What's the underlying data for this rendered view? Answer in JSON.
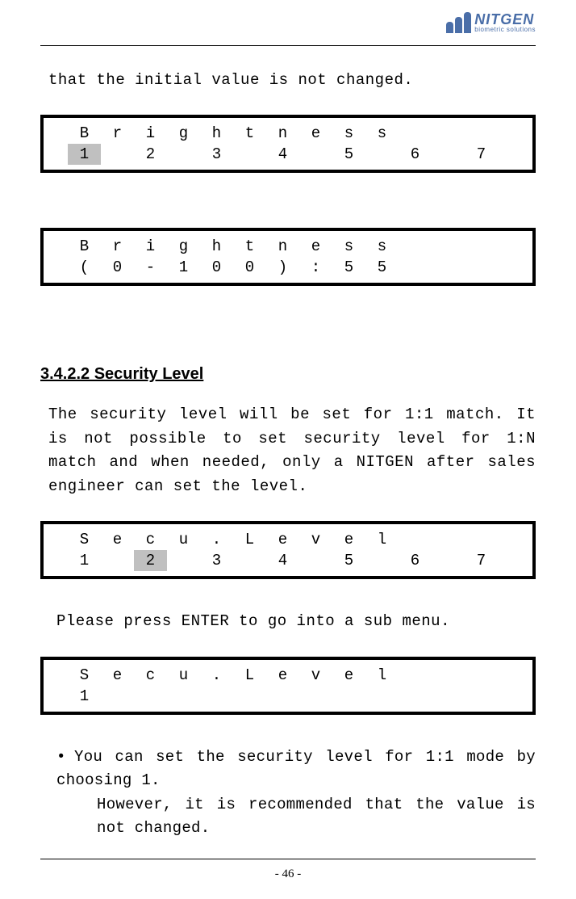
{
  "logo": {
    "main": "NITGEN",
    "sub": "biometric solutions"
  },
  "intro_line": "that the initial value is not changed.",
  "lcd1": {
    "row1": [
      "B",
      "r",
      "i",
      "g",
      "h",
      "t",
      "n",
      "e",
      "s",
      "s",
      "",
      "",
      "",
      ""
    ],
    "row2": [
      "1",
      "",
      "2",
      "",
      "3",
      "",
      "4",
      "",
      "5",
      "",
      "6",
      "",
      "7",
      ""
    ],
    "highlight_row": 1,
    "highlight_col": 0
  },
  "lcd2": {
    "row1": [
      "B",
      "r",
      "i",
      "g",
      "h",
      "t",
      "n",
      "e",
      "s",
      "s",
      "",
      "",
      "",
      ""
    ],
    "row2": [
      "(",
      "0",
      "-",
      "1",
      "0",
      "0",
      ")",
      ":",
      "5",
      "5",
      "",
      "",
      "",
      ""
    ],
    "highlight_row": -1,
    "highlight_col": -1
  },
  "section_heading": "3.4.2.2 Security Level",
  "section_body": "The security level will be set for 1:1 match. It is not possible to set security level for 1:N match and when needed, only a NITGEN after sales engineer can set the level.",
  "lcd3": {
    "row1": [
      "S",
      "e",
      "c",
      "u",
      ".",
      "L",
      "e",
      "v",
      "e",
      "l",
      "",
      "",
      "",
      ""
    ],
    "row2": [
      "1",
      "",
      "2",
      "",
      "3",
      "",
      "4",
      "",
      "5",
      "",
      "6",
      "",
      "7",
      ""
    ],
    "highlight_row": 1,
    "highlight_col": 2
  },
  "enter_line": "Please press ENTER to go into a sub menu.",
  "lcd4": {
    "row1": [
      "S",
      "e",
      "c",
      "u",
      ".",
      "L",
      "e",
      "v",
      "e",
      "l",
      "",
      "",
      "",
      ""
    ],
    "row2": [
      "1",
      "",
      "",
      "",
      "",
      "",
      "",
      "",
      "",
      "",
      "",
      "",
      "",
      ""
    ],
    "highlight_row": -1,
    "highlight_col": -1
  },
  "bullet": {
    "line1": "You can set the security level for 1:1 mode by choosing 1.",
    "line2": "However, it is recommended that the value is not changed."
  },
  "page_number": "- 46 -"
}
